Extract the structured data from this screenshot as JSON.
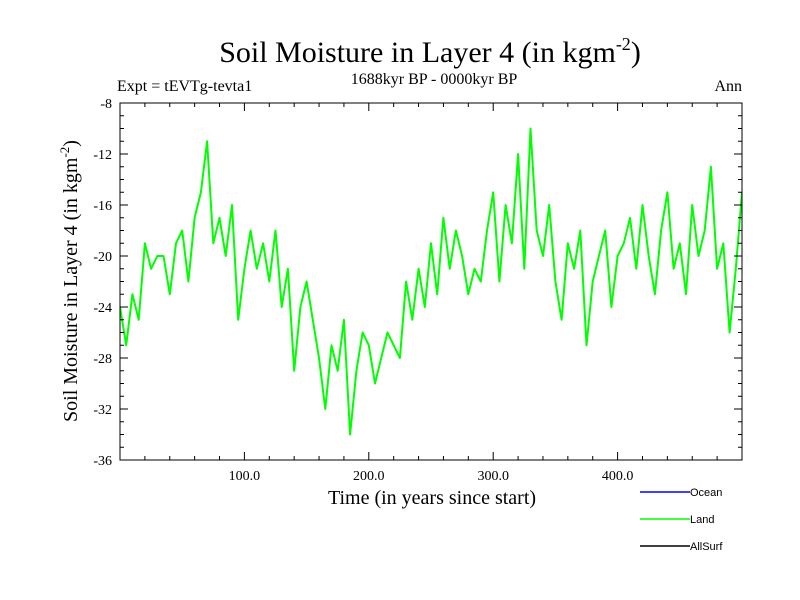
{
  "chart_data": {
    "type": "line",
    "title": "Soil Moisture in Layer 4 (in kgm",
    "title_sup": "-2",
    "title_close": ")",
    "subtitle": "1688kyr BP - 0000kyr BP",
    "left_label": "Expt = tEVTg-tevta1",
    "right_label": "Ann",
    "xlabel": "Time (in years since start)",
    "ylabel": "Soil Moisture in Layer 4 (in kgm",
    "ylabel_sup": "-2",
    "ylabel_close": ")",
    "xlim": [
      0,
      500
    ],
    "ylim": [
      -36,
      -8
    ],
    "x_ticks": [
      {
        "value": 100,
        "label": "100.0"
      },
      {
        "value": 200,
        "label": "200.0"
      },
      {
        "value": 300,
        "label": "300.0"
      },
      {
        "value": 400,
        "label": "400.0"
      }
    ],
    "y_ticks": [
      {
        "value": -8,
        "label": "-8"
      },
      {
        "value": -12,
        "label": "-12"
      },
      {
        "value": -16,
        "label": "-16"
      },
      {
        "value": -20,
        "label": "-20"
      },
      {
        "value": -24,
        "label": "-24"
      },
      {
        "value": -28,
        "label": "-28"
      },
      {
        "value": -32,
        "label": "-32"
      },
      {
        "value": -36,
        "label": "-36"
      }
    ],
    "legend": [
      {
        "name": "Ocean",
        "color": "#0000ff"
      },
      {
        "name": "Land",
        "color": "#00ff00"
      },
      {
        "name": "AllSurf",
        "color": "#000000"
      }
    ],
    "series": [
      {
        "name": "Land",
        "color": "#00ff00",
        "x": [
          0,
          5,
          10,
          15,
          20,
          25,
          30,
          35,
          40,
          45,
          50,
          55,
          60,
          65,
          70,
          75,
          80,
          85,
          90,
          95,
          100,
          105,
          110,
          115,
          120,
          125,
          130,
          135,
          140,
          145,
          150,
          155,
          160,
          165,
          170,
          175,
          180,
          185,
          190,
          195,
          200,
          205,
          210,
          215,
          220,
          225,
          230,
          235,
          240,
          245,
          250,
          255,
          260,
          265,
          270,
          275,
          280,
          285,
          290,
          295,
          300,
          305,
          310,
          315,
          320,
          325,
          330,
          335,
          340,
          345,
          350,
          355,
          360,
          365,
          370,
          375,
          380,
          385,
          390,
          395,
          400,
          405,
          410,
          415,
          420,
          425,
          430,
          435,
          440,
          445,
          450,
          455,
          460,
          465,
          470,
          475,
          480,
          485,
          490,
          495,
          500
        ],
        "values": [
          -24,
          -27,
          -23,
          -25,
          -19,
          -21,
          -20,
          -20,
          -23,
          -19,
          -18,
          -22,
          -17,
          -15,
          -11,
          -19,
          -17,
          -20,
          -16,
          -25,
          -21,
          -18,
          -21,
          -19,
          -22,
          -18,
          -24,
          -21,
          -29,
          -24,
          -22,
          -25,
          -28,
          -32,
          -27,
          -29,
          -25,
          -34,
          -29,
          -26,
          -27,
          -30,
          -28,
          -26,
          -27,
          -28,
          -22,
          -25,
          -21,
          -24,
          -19,
          -23,
          -17,
          -21,
          -18,
          -20,
          -23,
          -21,
          -22,
          -18,
          -15,
          -22,
          -16,
          -19,
          -12,
          -21,
          -10,
          -18,
          -20,
          -16,
          -22,
          -25,
          -19,
          -21,
          -18,
          -27,
          -22,
          -20,
          -18,
          -24,
          -20,
          -19,
          -17,
          -21,
          -16,
          -20,
          -23,
          -18,
          -15,
          -21,
          -19,
          -23,
          -16,
          -20,
          -18,
          -13,
          -21,
          -19,
          -26,
          -21,
          -15
        ]
      }
    ]
  }
}
